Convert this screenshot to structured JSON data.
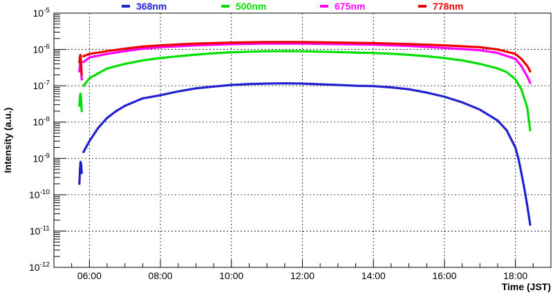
{
  "chart_data": {
    "type": "scatter",
    "title": "",
    "xlabel": "Time (JST)",
    "ylabel": "Intensity (a.u.)",
    "xlim": [
      "05:00",
      "19:00"
    ],
    "ylim": [
      1e-12,
      1e-05
    ],
    "yscale": "log",
    "grid": true,
    "legend": "top",
    "xticks": [
      "06:00",
      "08:00",
      "10:00",
      "12:00",
      "14:00",
      "16:00",
      "18:00"
    ],
    "yticks": [
      {
        "base": "10",
        "exp": "-12"
      },
      {
        "base": "10",
        "exp": "-11"
      },
      {
        "base": "10",
        "exp": "-10"
      },
      {
        "base": "10",
        "exp": "-9"
      },
      {
        "base": "10",
        "exp": "-8"
      },
      {
        "base": "10",
        "exp": "-7"
      },
      {
        "base": "10",
        "exp": "-6"
      },
      {
        "base": "10",
        "exp": "-5"
      }
    ],
    "series": [
      {
        "name": "368nm",
        "color": "#2020d0",
        "segments": [
          [
            [
              "05:43",
              2e-10
            ],
            [
              "05:44",
              5e-10
            ],
            [
              "05:45",
              8e-10
            ],
            [
              "05:46",
              7e-10
            ],
            [
              "05:47",
              4e-10
            ]
          ],
          [
            [
              "05:50",
              1.5e-09
            ],
            [
              "06:00",
              3e-09
            ],
            [
              "06:15",
              7e-09
            ],
            [
              "06:30",
              1.3e-08
            ],
            [
              "06:45",
              2e-08
            ],
            [
              "07:00",
              2.8e-08
            ],
            [
              "07:30",
              4.5e-08
            ],
            [
              "08:00",
              5.5e-08
            ],
            [
              "08:30",
              7e-08
            ],
            [
              "09:00",
              8.5e-08
            ],
            [
              "09:30",
              9.5e-08
            ],
            [
              "10:00",
              1.05e-07
            ],
            [
              "10:30",
              1.12e-07
            ],
            [
              "11:00",
              1.15e-07
            ],
            [
              "11:30",
              1.17e-07
            ],
            [
              "12:00",
              1.15e-07
            ],
            [
              "12:30",
              1.1e-07
            ],
            [
              "13:00",
              1.05e-07
            ],
            [
              "13:30",
              1e-07
            ],
            [
              "14:00",
              9.8e-08
            ],
            [
              "14:30",
              9e-08
            ],
            [
              "15:00",
              8e-08
            ],
            [
              "15:30",
              6.5e-08
            ],
            [
              "16:00",
              5e-08
            ],
            [
              "16:30",
              3.5e-08
            ],
            [
              "17:00",
              2.2e-08
            ],
            [
              "17:30",
              1.1e-08
            ],
            [
              "17:45",
              6e-09
            ],
            [
              "18:00",
              2e-09
            ],
            [
              "18:05",
              1e-09
            ],
            [
              "18:10",
              4e-10
            ],
            [
              "18:15",
              1.5e-10
            ],
            [
              "18:20",
              5e-11
            ],
            [
              "18:25",
              1.5e-11
            ]
          ]
        ]
      },
      {
        "name": "500nm",
        "color": "#00e000",
        "segments": [
          [
            [
              "05:43",
              2.8e-08
            ],
            [
              "05:44",
              5e-08
            ],
            [
              "05:45",
              6e-08
            ],
            [
              "05:46",
              4e-08
            ],
            [
              "05:47",
              2e-08
            ]
          ],
          [
            [
              "05:50",
              1e-07
            ],
            [
              "06:00",
              1.6e-07
            ],
            [
              "06:15",
              2.2e-07
            ],
            [
              "06:30",
              3e-07
            ],
            [
              "07:00",
              4e-07
            ],
            [
              "07:30",
              5e-07
            ],
            [
              "08:00",
              5.8e-07
            ],
            [
              "08:30",
              6.5e-07
            ],
            [
              "09:00",
              7.2e-07
            ],
            [
              "09:30",
              7.8e-07
            ],
            [
              "10:00",
              8.4e-07
            ],
            [
              "10:30",
              8.7e-07
            ],
            [
              "11:00",
              8.9e-07
            ],
            [
              "11:30",
              9e-07
            ],
            [
              "12:00",
              8.9e-07
            ],
            [
              "12:30",
              8.7e-07
            ],
            [
              "13:00",
              8.5e-07
            ],
            [
              "13:30",
              8.2e-07
            ],
            [
              "14:00",
              8e-07
            ],
            [
              "14:30",
              7.6e-07
            ],
            [
              "15:00",
              7.1e-07
            ],
            [
              "15:30",
              6.5e-07
            ],
            [
              "16:00",
              5.8e-07
            ],
            [
              "16:30",
              5e-07
            ],
            [
              "17:00",
              4e-07
            ],
            [
              "17:30",
              3e-07
            ],
            [
              "17:45",
              2.4e-07
            ],
            [
              "18:00",
              1.5e-07
            ],
            [
              "18:10",
              8e-08
            ],
            [
              "18:20",
              2.5e-08
            ],
            [
              "18:25",
              6e-09
            ]
          ]
        ]
      },
      {
        "name": "675nm",
        "color": "#ff00ff",
        "segments": [
          [
            [
              "05:43",
              2.5e-07
            ],
            [
              "05:44",
              4e-07
            ],
            [
              "05:45",
              5e-07
            ],
            [
              "05:46",
              3e-07
            ],
            [
              "05:47",
              1.5e-07
            ]
          ],
          [
            [
              "05:50",
              4.5e-07
            ],
            [
              "06:00",
              6e-07
            ],
            [
              "06:30",
              7.5e-07
            ],
            [
              "07:00",
              9e-07
            ],
            [
              "07:30",
              1.05e-06
            ],
            [
              "08:00",
              1.15e-06
            ],
            [
              "09:00",
              1.3e-06
            ],
            [
              "10:00",
              1.4e-06
            ],
            [
              "11:00",
              1.45e-06
            ],
            [
              "12:00",
              1.45e-06
            ],
            [
              "13:00",
              1.4e-06
            ],
            [
              "14:00",
              1.35e-06
            ],
            [
              "15:00",
              1.25e-06
            ],
            [
              "16:00",
              1.1e-06
            ],
            [
              "17:00",
              9.5e-07
            ],
            [
              "17:30",
              8e-07
            ],
            [
              "18:00",
              5.5e-07
            ],
            [
              "18:10",
              3.5e-07
            ],
            [
              "18:20",
              1.8e-07
            ],
            [
              "18:25",
              1.2e-07
            ]
          ]
        ]
      },
      {
        "name": "778nm",
        "color": "#ee0000",
        "segments": [
          [
            [
              "05:43",
              4.5e-07
            ],
            [
              "05:44",
              6.5e-07
            ],
            [
              "05:45",
              7e-07
            ],
            [
              "05:46",
              4e-07
            ],
            [
              "05:47",
              2e-07
            ]
          ],
          [
            [
              "05:50",
              6.5e-07
            ],
            [
              "06:00",
              7.5e-07
            ],
            [
              "06:30",
              9e-07
            ],
            [
              "07:00",
              1.05e-06
            ],
            [
              "07:30",
              1.2e-06
            ],
            [
              "08:00",
              1.3e-06
            ],
            [
              "09:00",
              1.45e-06
            ],
            [
              "10:00",
              1.55e-06
            ],
            [
              "11:00",
              1.6e-06
            ],
            [
              "12:00",
              1.6e-06
            ],
            [
              "13:00",
              1.55e-06
            ],
            [
              "14:00",
              1.5e-06
            ],
            [
              "15:00",
              1.4e-06
            ],
            [
              "16:00",
              1.3e-06
            ],
            [
              "17:00",
              1.15e-06
            ],
            [
              "17:30",
              1e-06
            ],
            [
              "18:00",
              7.5e-07
            ],
            [
              "18:10",
              5.5e-07
            ],
            [
              "18:20",
              3.5e-07
            ],
            [
              "18:25",
              2.5e-07
            ]
          ]
        ]
      }
    ]
  }
}
